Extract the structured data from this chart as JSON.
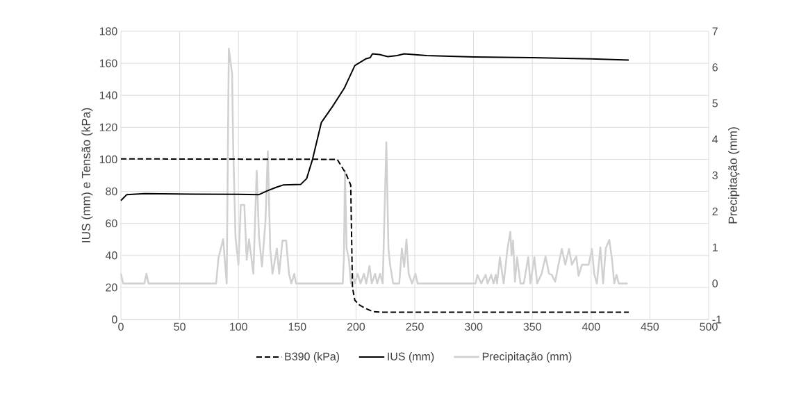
{
  "chart_data": {
    "type": "line",
    "xlabel": null,
    "ylabel": "IUS (mm) e Tensão (kPa)",
    "y2label": "Precipitação (mm)",
    "xlim": [
      0,
      500
    ],
    "xticks": [
      0,
      50,
      100,
      150,
      200,
      250,
      300,
      350,
      400,
      450,
      500
    ],
    "ylim": [
      0,
      180
    ],
    "yticks": [
      0,
      20,
      40,
      60,
      80,
      100,
      120,
      140,
      160,
      180
    ],
    "y2lim": [
      -1,
      7
    ],
    "y2ticks": [
      -1,
      0,
      1,
      2,
      3,
      4,
      5,
      6,
      7
    ],
    "grid": true,
    "legend": "bottom",
    "marker": "none",
    "series": [
      {
        "name": "B390 (kPa)",
        "color": "#000000",
        "line_style": "dashed",
        "x": [
          0,
          184,
          191.5,
          195.5,
          197,
          199,
          203,
          208,
          214,
          222,
          432
        ],
        "values": [
          100.3,
          100,
          91,
          84,
          20,
          12,
          9,
          7,
          5,
          4.5,
          4.5
        ]
      },
      {
        "name": "IUS (mm)",
        "color": "#000000",
        "line_style": "solid",
        "x": [
          0,
          5,
          20,
          60,
          100,
          117.5,
          125,
          132,
          138,
          153,
          158,
          163,
          170.5,
          180,
          190,
          199,
          208.7,
          212,
          214,
          220,
          227,
          235,
          241,
          260,
          300,
          350,
          400,
          432
        ],
        "values": [
          74.3,
          78,
          78.6,
          78.3,
          78.2,
          78,
          80.5,
          82.5,
          84,
          84.4,
          88,
          100,
          123,
          133,
          144.4,
          158.6,
          162.9,
          163.5,
          165.9,
          165.5,
          164.2,
          164.8,
          165.9,
          164.8,
          164,
          163.5,
          162.8,
          162
        ]
      },
      {
        "name": "Precipitação (mm)",
        "color": "#d0d0d0",
        "line_style": "solid",
        "axis": "y2",
        "x": [
          0,
          2,
          20,
          21.7,
          23.5,
          81,
          83,
          87,
          90,
          91.8,
          94.6,
          95.5,
          97.5,
          100,
          102,
          105,
          107,
          109,
          112.7,
          115.5,
          117.5,
          120,
          123,
          125,
          127,
          129,
          132.7,
          134.6,
          137.4,
          140.6,
          143,
          145,
          147.5,
          149,
          188.7,
          189.7,
          190.6,
          192,
          193.8,
          195.7,
          197.3,
          199,
          201.4,
          203.9,
          206.8,
          208.7,
          211.5,
          213.4,
          216.3,
          218,
          220.5,
          222.7,
          225.8,
          227.6,
          229,
          231.6,
          236.8,
          239,
          241,
          242.9,
          244.8,
          247.7,
          250.5,
          252.4,
          301.8,
          303.3,
          306.5,
          310.3,
          312,
          315,
          317,
          318.9,
          320,
          322.4,
          325.6,
          328.9,
          331.3,
          332.3,
          333.6,
          335.2,
          337,
          339.9,
          342.7,
          346.5,
          348.4,
          351.7,
          354.1,
          357.9,
          361.2,
          364.2,
          366.5,
          369.4,
          372.2,
          375.1,
          378,
          381.2,
          383.6,
          387.4,
          389.3,
          392.2,
          395,
          397.9,
          400.7,
          402.6,
          404.9,
          407.9,
          410.2,
          412.5,
          415.5,
          417.8,
          419.7,
          421.6,
          423.5,
          431.1
        ],
        "values": [
          0.27,
          0,
          0,
          0.27,
          0,
          0,
          0.71,
          1.23,
          0,
          6.52,
          5.82,
          3.82,
          1.29,
          0.52,
          2.18,
          2.18,
          0.66,
          1.23,
          0.27,
          3.13,
          1.29,
          0.47,
          1.73,
          3.67,
          0.97,
          0.27,
          0.97,
          0.27,
          1.19,
          1.19,
          0.27,
          0,
          0.27,
          0,
          0,
          0.71,
          3.13,
          0.97,
          0.71,
          0,
          0.27,
          0,
          0.27,
          0,
          0.27,
          0,
          0.49,
          0,
          0.27,
          0,
          0.27,
          0,
          3.92,
          0.97,
          0.52,
          0,
          0,
          0.97,
          0.46,
          1.22,
          0.27,
          0,
          0.27,
          0,
          0,
          0.24,
          0,
          0.24,
          0,
          0.24,
          0,
          0.24,
          0,
          0.73,
          0,
          0.97,
          1.44,
          0.78,
          1.19,
          0.05,
          0.73,
          0,
          0,
          0.73,
          0,
          0.73,
          0,
          0.27,
          0.75,
          0.27,
          0.24,
          0.05,
          0.52,
          0.96,
          0.52,
          0.96,
          0.52,
          0.75,
          0.21,
          0.52,
          0.52,
          0.52,
          0.96,
          0.27,
          0,
          1.0,
          0,
          0.98,
          1.21,
          0.65,
          0,
          0.24,
          0,
          0
        ]
      }
    ]
  }
}
